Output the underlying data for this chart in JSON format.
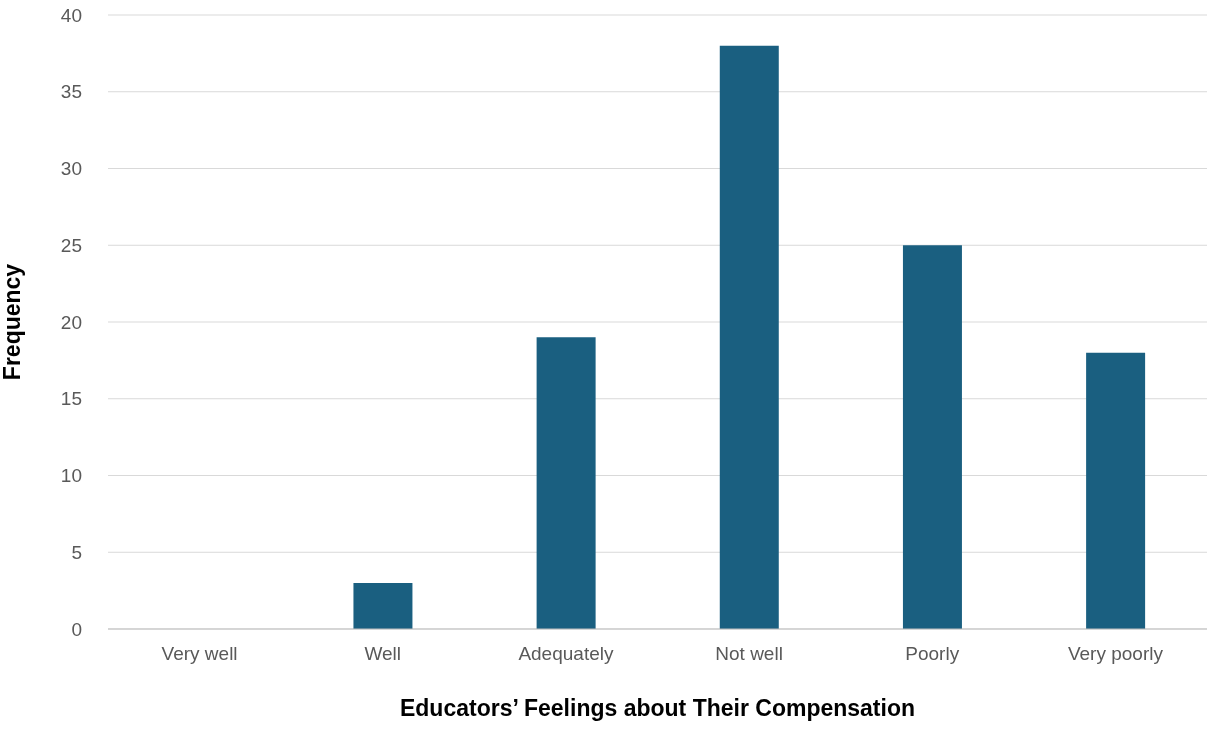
{
  "chart_data": {
    "type": "bar",
    "xlabel": "Educators’ Feelings about Their Compensation",
    "ylabel": "Frequency",
    "categories": [
      "Very well",
      "Well",
      "Adequately",
      "Not well",
      "Poorly",
      "Very poorly"
    ],
    "values": [
      0,
      3,
      19,
      38,
      25,
      18
    ],
    "color": "#1a5f80",
    "ylim": [
      0,
      40
    ],
    "yticks": [
      0,
      5,
      10,
      15,
      20,
      25,
      30,
      35,
      40
    ],
    "grid": "y",
    "legend": false
  }
}
